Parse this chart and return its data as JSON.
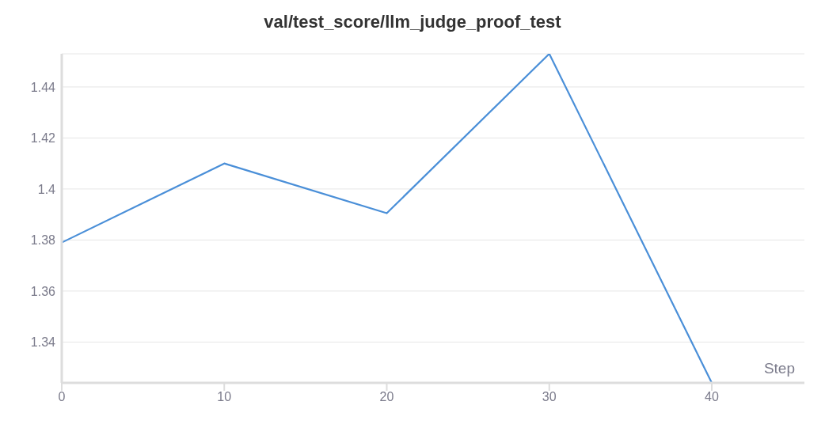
{
  "chart_data": {
    "type": "line",
    "title": "val/test_score/llm_judge_proof_test",
    "xlabel": "Step",
    "x": [
      0,
      10,
      20,
      30,
      40
    ],
    "series": [
      {
        "color": "#4a8fd8",
        "values": [
          1.379,
          1.41,
          1.3905,
          1.453,
          1.324
        ]
      }
    ],
    "xlim": [
      0,
      45.7
    ],
    "xticks": [
      0,
      10,
      20,
      30,
      40
    ],
    "ylim": [
      1.324,
      1.453
    ],
    "yticks": [
      1.34,
      1.36,
      1.38,
      1.4,
      1.42,
      1.44
    ],
    "grid": "y",
    "legend": false,
    "marker": "none",
    "line_style": "solid"
  }
}
